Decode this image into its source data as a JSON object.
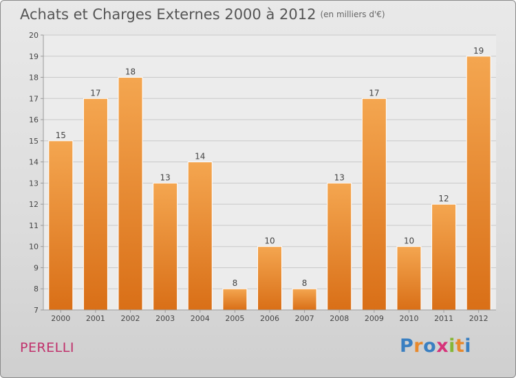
{
  "header": {
    "title": "Achats et Charges Externes 2000 à 2012",
    "subtitle": "(en milliers d'€)"
  },
  "footer": {
    "place": "PERELLI",
    "logo": {
      "letters": [
        "P",
        "r",
        "o",
        "x",
        "i",
        "t",
        "i"
      ],
      "colors": [
        "#3a7fc1",
        "#e8892c",
        "#3a7fc1",
        "#d6327a",
        "#86b637",
        "#e8892c",
        "#3a7fc1"
      ]
    }
  },
  "colors": {
    "bar_light": "#f4a650",
    "bar_dark": "#d96f17",
    "grid": "#c8c8c8",
    "axis_text": "#444444"
  },
  "chart_data": {
    "type": "bar",
    "title": "Achats et Charges Externes 2000 à 2012",
    "subtitle": "(en milliers d'€)",
    "categories": [
      "2000",
      "2001",
      "2002",
      "2003",
      "2004",
      "2005",
      "2006",
      "2007",
      "2008",
      "2009",
      "2010",
      "2011",
      "2012"
    ],
    "values": [
      15,
      17,
      18,
      13,
      14,
      8,
      10,
      8,
      13,
      17,
      10,
      12,
      19
    ],
    "ylim": [
      7,
      20
    ],
    "yticks": [
      7,
      8,
      9,
      10,
      11,
      12,
      13,
      14,
      15,
      16,
      17,
      18,
      19,
      20
    ],
    "grid": true,
    "data_labels": true
  }
}
